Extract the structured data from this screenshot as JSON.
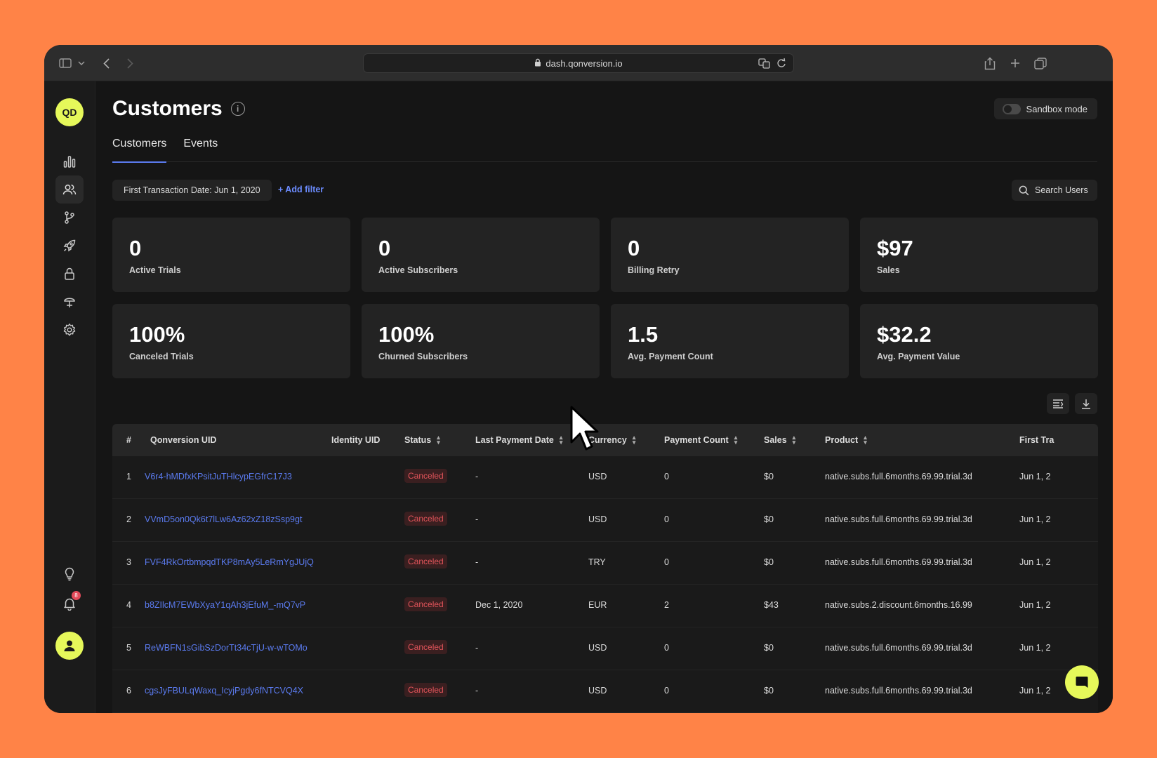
{
  "browser": {
    "url": "dash.qonversion.io"
  },
  "sidebar": {
    "workspace_initials": "QD",
    "notification_count": "8",
    "items": [
      {
        "icon": "analytics-icon"
      },
      {
        "icon": "customers-icon"
      },
      {
        "icon": "branch-icon"
      },
      {
        "icon": "rocket-icon"
      },
      {
        "icon": "lock-icon"
      },
      {
        "icon": "integrations-icon"
      },
      {
        "icon": "settings-icon"
      }
    ]
  },
  "page": {
    "title": "Customers",
    "sandbox_label": "Sandbox mode",
    "tabs": [
      {
        "label": "Customers"
      },
      {
        "label": "Events"
      }
    ],
    "filter_chip": "First Transaction Date: Jun 1, 2020",
    "add_filter": "+ Add filter",
    "search_label": "Search Users"
  },
  "metrics": [
    {
      "value": "0",
      "label": "Active Trials"
    },
    {
      "value": "0",
      "label": "Active Subscribers"
    },
    {
      "value": "0",
      "label": "Billing Retry"
    },
    {
      "value": "$97",
      "label": "Sales"
    },
    {
      "value": "100%",
      "label": "Canceled Trials"
    },
    {
      "value": "100%",
      "label": "Churned Subscribers"
    },
    {
      "value": "1.5",
      "label": "Avg. Payment Count"
    },
    {
      "value": "$32.2",
      "label": "Avg. Payment Value"
    }
  ],
  "table": {
    "columns": [
      "#",
      "Qonversion UID",
      "Identity UID",
      "Status",
      "Last Payment Date",
      "Currency",
      "Payment Count",
      "Sales",
      "Product",
      "First Tra"
    ],
    "rows": [
      {
        "num": "1",
        "uid": "V6r4-hMDfxKPsitJuTHlcypEGfrC17J3",
        "status": "Canceled",
        "last_payment": "-",
        "currency": "USD",
        "count": "0",
        "sales": "$0",
        "product": "native.subs.full.6months.69.99.trial.3d",
        "first": "Jun 1, 2"
      },
      {
        "num": "2",
        "uid": "VVmD5on0Qk6t7lLw6Az62xZ18zSsp9gt",
        "status": "Canceled",
        "last_payment": "-",
        "currency": "USD",
        "count": "0",
        "sales": "$0",
        "product": "native.subs.full.6months.69.99.trial.3d",
        "first": "Jun 1, 2"
      },
      {
        "num": "3",
        "uid": "FVF4RkOrtbmpqdTKP8mAy5LeRmYgJUjQ",
        "status": "Canceled",
        "last_payment": "-",
        "currency": "TRY",
        "count": "0",
        "sales": "$0",
        "product": "native.subs.full.6months.69.99.trial.3d",
        "first": "Jun 1, 2"
      },
      {
        "num": "4",
        "uid": "b8ZIlcM7EWbXyaY1qAh3jEfuM_-mQ7vP",
        "status": "Canceled",
        "last_payment": "Dec 1, 2020",
        "currency": "EUR",
        "count": "2",
        "sales": "$43",
        "product": "native.subs.2.discount.6months.16.99",
        "first": "Jun 1, 2"
      },
      {
        "num": "5",
        "uid": "ReWBFN1sGibSzDorTt34cTjU-w-wTOMo",
        "status": "Canceled",
        "last_payment": "-",
        "currency": "USD",
        "count": "0",
        "sales": "$0",
        "product": "native.subs.full.6months.69.99.trial.3d",
        "first": "Jun 1, 2"
      },
      {
        "num": "6",
        "uid": "cgsJyFBULqWaxq_IcyjPgdy6fNTCVQ4X",
        "status": "Canceled",
        "last_payment": "-",
        "currency": "USD",
        "count": "0",
        "sales": "$0",
        "product": "native.subs.full.6months.69.99.trial.3d",
        "first": "Jun 1, 2"
      }
    ]
  },
  "colors": {
    "accent": "#5b7bf0",
    "brand_yellow": "#E6F85A",
    "canceled": "#e2545a",
    "background": "#FF8347"
  }
}
